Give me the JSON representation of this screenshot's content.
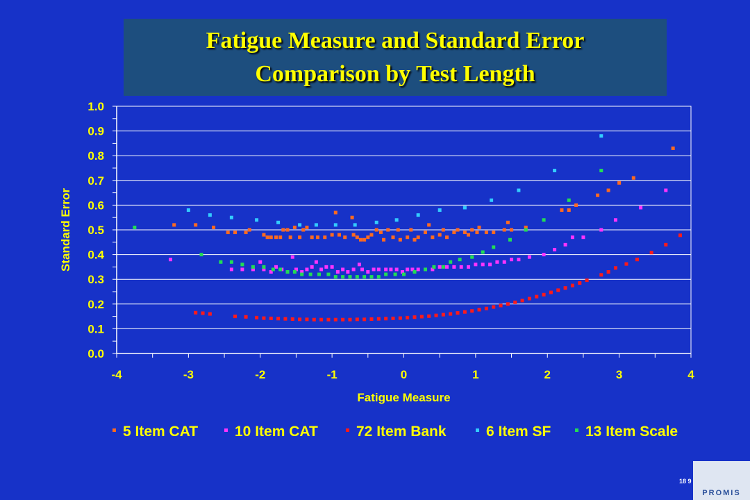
{
  "slide": {
    "title_line1": "Fatigue Measure and Standard Error",
    "title_line2": "Comparison by Test Length",
    "slide_number": "18 9",
    "logo_text": "PROMIS"
  },
  "colors": {
    "background": "#1732c8",
    "title_box": "#1d4e7e",
    "title_text": "#ffff00",
    "axis_text": "#ffff00",
    "plot_area": "#1732c8",
    "gridlines": "#ffffff"
  },
  "chart_data": {
    "type": "scatter",
    "title": "",
    "xlabel": "Fatigue Measure",
    "ylabel": "Standard Error",
    "xlim": [
      -4,
      4
    ],
    "ylim": [
      0.0,
      1.0
    ],
    "x_ticks": [
      "-4",
      "-3",
      "-2",
      "-1",
      "0",
      "1",
      "2",
      "3",
      "4"
    ],
    "y_ticks": [
      "0.0",
      "0.1",
      "0.2",
      "0.3",
      "0.4",
      "0.5",
      "0.6",
      "0.7",
      "0.8",
      "0.9",
      "1.0"
    ],
    "grid": "horizontal",
    "legend_position": "bottom",
    "series": [
      {
        "name": "5 Item CAT",
        "color": "#ff6a20",
        "points": [
          [
            -3.2,
            0.52
          ],
          [
            -2.9,
            0.52
          ],
          [
            -2.65,
            0.51
          ],
          [
            -2.45,
            0.49
          ],
          [
            -2.35,
            0.49
          ],
          [
            -2.2,
            0.49
          ],
          [
            -2.15,
            0.5
          ],
          [
            -1.95,
            0.48
          ],
          [
            -1.9,
            0.47
          ],
          [
            -1.85,
            0.47
          ],
          [
            -1.78,
            0.47
          ],
          [
            -1.72,
            0.47
          ],
          [
            -1.68,
            0.5
          ],
          [
            -1.62,
            0.5
          ],
          [
            -1.58,
            0.47
          ],
          [
            -1.52,
            0.51
          ],
          [
            -1.45,
            0.47
          ],
          [
            -1.4,
            0.5
          ],
          [
            -1.35,
            0.51
          ],
          [
            -1.28,
            0.47
          ],
          [
            -1.2,
            0.47
          ],
          [
            -1.1,
            0.47
          ],
          [
            -1.0,
            0.48
          ],
          [
            -0.95,
            0.57
          ],
          [
            -0.9,
            0.48
          ],
          [
            -0.82,
            0.47
          ],
          [
            -0.72,
            0.55
          ],
          [
            -0.7,
            0.48
          ],
          [
            -0.65,
            0.47
          ],
          [
            -0.6,
            0.46
          ],
          [
            -0.55,
            0.46
          ],
          [
            -0.5,
            0.47
          ],
          [
            -0.45,
            0.48
          ],
          [
            -0.38,
            0.5
          ],
          [
            -0.32,
            0.49
          ],
          [
            -0.28,
            0.46
          ],
          [
            -0.22,
            0.5
          ],
          [
            -0.15,
            0.47
          ],
          [
            -0.08,
            0.5
          ],
          [
            -0.05,
            0.46
          ],
          [
            0.05,
            0.47
          ],
          [
            0.1,
            0.5
          ],
          [
            0.15,
            0.46
          ],
          [
            0.2,
            0.47
          ],
          [
            0.3,
            0.49
          ],
          [
            0.35,
            0.52
          ],
          [
            0.4,
            0.47
          ],
          [
            0.5,
            0.48
          ],
          [
            0.55,
            0.5
          ],
          [
            0.6,
            0.47
          ],
          [
            0.7,
            0.49
          ],
          [
            0.75,
            0.5
          ],
          [
            0.85,
            0.49
          ],
          [
            0.9,
            0.48
          ],
          [
            0.95,
            0.5
          ],
          [
            1.02,
            0.49
          ],
          [
            1.05,
            0.51
          ],
          [
            1.15,
            0.49
          ],
          [
            1.25,
            0.49
          ],
          [
            1.4,
            0.5
          ],
          [
            1.45,
            0.53
          ],
          [
            1.5,
            0.5
          ],
          [
            1.7,
            0.51
          ],
          [
            2.2,
            0.58
          ],
          [
            2.3,
            0.58
          ],
          [
            2.4,
            0.6
          ],
          [
            2.7,
            0.64
          ],
          [
            2.85,
            0.66
          ],
          [
            3.0,
            0.69
          ],
          [
            3.2,
            0.71
          ],
          [
            3.75,
            0.83
          ]
        ]
      },
      {
        "name": "10 Item CAT",
        "color": "#ff33ff",
        "points": [
          [
            -3.25,
            0.38
          ],
          [
            -2.4,
            0.34
          ],
          [
            -2.25,
            0.34
          ],
          [
            -2.1,
            0.34
          ],
          [
            -2.0,
            0.37
          ],
          [
            -1.95,
            0.34
          ],
          [
            -1.85,
            0.33
          ],
          [
            -1.78,
            0.35
          ],
          [
            -1.7,
            0.34
          ],
          [
            -1.62,
            0.33
          ],
          [
            -1.55,
            0.39
          ],
          [
            -1.5,
            0.34
          ],
          [
            -1.42,
            0.33
          ],
          [
            -1.35,
            0.34
          ],
          [
            -1.28,
            0.35
          ],
          [
            -1.22,
            0.37
          ],
          [
            -1.15,
            0.34
          ],
          [
            -1.08,
            0.35
          ],
          [
            -1.0,
            0.35
          ],
          [
            -0.92,
            0.33
          ],
          [
            -0.85,
            0.34
          ],
          [
            -0.78,
            0.33
          ],
          [
            -0.7,
            0.34
          ],
          [
            -0.62,
            0.36
          ],
          [
            -0.58,
            0.34
          ],
          [
            -0.5,
            0.33
          ],
          [
            -0.42,
            0.34
          ],
          [
            -0.35,
            0.34
          ],
          [
            -0.25,
            0.34
          ],
          [
            -0.18,
            0.34
          ],
          [
            -0.1,
            0.34
          ],
          [
            -0.02,
            0.33
          ],
          [
            0.05,
            0.34
          ],
          [
            0.12,
            0.34
          ],
          [
            0.2,
            0.34
          ],
          [
            0.3,
            0.34
          ],
          [
            0.4,
            0.34
          ],
          [
            0.5,
            0.35
          ],
          [
            0.6,
            0.35
          ],
          [
            0.7,
            0.35
          ],
          [
            0.8,
            0.35
          ],
          [
            0.9,
            0.35
          ],
          [
            1.0,
            0.36
          ],
          [
            1.1,
            0.36
          ],
          [
            1.2,
            0.36
          ],
          [
            1.3,
            0.37
          ],
          [
            1.4,
            0.37
          ],
          [
            1.5,
            0.38
          ],
          [
            1.6,
            0.38
          ],
          [
            1.75,
            0.39
          ],
          [
            1.95,
            0.4
          ],
          [
            2.1,
            0.42
          ],
          [
            2.25,
            0.44
          ],
          [
            2.35,
            0.47
          ],
          [
            2.5,
            0.47
          ],
          [
            2.75,
            0.5
          ],
          [
            2.95,
            0.54
          ],
          [
            3.3,
            0.59
          ],
          [
            3.65,
            0.66
          ]
        ]
      },
      {
        "name": "72 Item Bank",
        "color": "#ff1a1a",
        "points": [
          [
            -2.9,
            0.165
          ],
          [
            -2.8,
            0.163
          ],
          [
            -2.7,
            0.16
          ],
          [
            -2.35,
            0.15
          ],
          [
            -2.2,
            0.148
          ],
          [
            -2.05,
            0.145
          ],
          [
            -1.95,
            0.143
          ],
          [
            -1.85,
            0.142
          ],
          [
            -1.75,
            0.141
          ],
          [
            -1.65,
            0.14
          ],
          [
            -1.55,
            0.139
          ],
          [
            -1.45,
            0.138
          ],
          [
            -1.35,
            0.138
          ],
          [
            -1.25,
            0.137
          ],
          [
            -1.15,
            0.137
          ],
          [
            -1.05,
            0.137
          ],
          [
            -0.95,
            0.137
          ],
          [
            -0.85,
            0.137
          ],
          [
            -0.75,
            0.137
          ],
          [
            -0.65,
            0.138
          ],
          [
            -0.55,
            0.138
          ],
          [
            -0.45,
            0.139
          ],
          [
            -0.35,
            0.14
          ],
          [
            -0.25,
            0.141
          ],
          [
            -0.15,
            0.142
          ],
          [
            -0.05,
            0.143
          ],
          [
            0.05,
            0.145
          ],
          [
            0.15,
            0.147
          ],
          [
            0.25,
            0.149
          ],
          [
            0.35,
            0.151
          ],
          [
            0.45,
            0.154
          ],
          [
            0.55,
            0.157
          ],
          [
            0.65,
            0.16
          ],
          [
            0.75,
            0.164
          ],
          [
            0.85,
            0.168
          ],
          [
            0.95,
            0.172
          ],
          [
            1.05,
            0.177
          ],
          [
            1.15,
            0.182
          ],
          [
            1.25,
            0.188
          ],
          [
            1.35,
            0.194
          ],
          [
            1.45,
            0.2
          ],
          [
            1.55,
            0.207
          ],
          [
            1.65,
            0.214
          ],
          [
            1.75,
            0.222
          ],
          [
            1.85,
            0.23
          ],
          [
            1.95,
            0.238
          ],
          [
            2.05,
            0.247
          ],
          [
            2.15,
            0.256
          ],
          [
            2.25,
            0.265
          ],
          [
            2.35,
            0.275
          ],
          [
            2.45,
            0.285
          ],
          [
            2.55,
            0.296
          ],
          [
            2.75,
            0.318
          ],
          [
            2.85,
            0.33
          ],
          [
            2.95,
            0.346
          ],
          [
            3.1,
            0.362
          ],
          [
            3.25,
            0.38
          ],
          [
            3.45,
            0.408
          ],
          [
            3.65,
            0.44
          ],
          [
            3.85,
            0.478
          ]
        ]
      },
      {
        "name": "6 Item SF",
        "color": "#33ccff",
        "points": [
          [
            -3.0,
            0.58
          ],
          [
            -2.7,
            0.56
          ],
          [
            -2.4,
            0.55
          ],
          [
            -2.05,
            0.54
          ],
          [
            -1.75,
            0.53
          ],
          [
            -1.45,
            0.52
          ],
          [
            -1.22,
            0.52
          ],
          [
            -0.95,
            0.52
          ],
          [
            -0.68,
            0.52
          ],
          [
            -0.38,
            0.53
          ],
          [
            -0.1,
            0.54
          ],
          [
            0.2,
            0.56
          ],
          [
            0.5,
            0.58
          ],
          [
            0.85,
            0.59
          ],
          [
            1.22,
            0.62
          ],
          [
            1.6,
            0.66
          ],
          [
            2.1,
            0.74
          ],
          [
            2.75,
            0.88
          ]
        ]
      },
      {
        "name": "13 Item Scale",
        "color": "#22dd55",
        "points": [
          [
            -3.75,
            0.51
          ],
          [
            -2.82,
            0.4
          ],
          [
            -2.55,
            0.37
          ],
          [
            -2.4,
            0.37
          ],
          [
            -2.25,
            0.36
          ],
          [
            -2.1,
            0.35
          ],
          [
            -1.95,
            0.35
          ],
          [
            -1.82,
            0.34
          ],
          [
            -1.72,
            0.34
          ],
          [
            -1.62,
            0.33
          ],
          [
            -1.52,
            0.33
          ],
          [
            -1.42,
            0.32
          ],
          [
            -1.3,
            0.32
          ],
          [
            -1.18,
            0.32
          ],
          [
            -1.05,
            0.32
          ],
          [
            -0.95,
            0.31
          ],
          [
            -0.85,
            0.31
          ],
          [
            -0.75,
            0.31
          ],
          [
            -0.65,
            0.31
          ],
          [
            -0.55,
            0.31
          ],
          [
            -0.45,
            0.31
          ],
          [
            -0.35,
            0.31
          ],
          [
            -0.25,
            0.32
          ],
          [
            -0.12,
            0.32
          ],
          [
            0.0,
            0.32
          ],
          [
            0.15,
            0.33
          ],
          [
            0.3,
            0.34
          ],
          [
            0.42,
            0.35
          ],
          [
            0.55,
            0.35
          ],
          [
            0.65,
            0.37
          ],
          [
            0.78,
            0.38
          ],
          [
            0.95,
            0.39
          ],
          [
            1.1,
            0.41
          ],
          [
            1.25,
            0.43
          ],
          [
            1.48,
            0.46
          ],
          [
            1.7,
            0.5
          ],
          [
            1.95,
            0.54
          ],
          [
            2.3,
            0.62
          ],
          [
            2.75,
            0.74
          ]
        ]
      }
    ]
  }
}
